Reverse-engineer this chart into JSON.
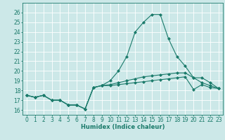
{
  "x": [
    0,
    1,
    2,
    3,
    4,
    5,
    6,
    7,
    8,
    9,
    10,
    11,
    12,
    13,
    14,
    15,
    16,
    17,
    18,
    19,
    20,
    21,
    22,
    23
  ],
  "line1": [
    17.5,
    17.3,
    17.5,
    17.0,
    17.0,
    16.5,
    16.5,
    16.1,
    18.3,
    18.5,
    18.5,
    18.6,
    18.7,
    18.8,
    18.9,
    19.0,
    19.1,
    19.2,
    19.3,
    19.4,
    18.1,
    18.6,
    18.3,
    18.2
  ],
  "line2": [
    17.5,
    17.3,
    17.5,
    17.0,
    17.0,
    16.5,
    16.5,
    16.1,
    18.3,
    18.5,
    18.6,
    18.8,
    19.0,
    19.2,
    19.4,
    19.5,
    19.6,
    19.7,
    19.8,
    19.8,
    19.3,
    18.8,
    18.5,
    18.2
  ],
  "line3": [
    17.5,
    17.3,
    17.5,
    17.0,
    17.0,
    16.5,
    16.5,
    16.1,
    18.3,
    18.5,
    19.0,
    20.0,
    21.5,
    24.0,
    25.0,
    25.8,
    25.8,
    23.3,
    21.5,
    20.5,
    19.3,
    19.3,
    18.8,
    18.2
  ],
  "line_color": "#1a7a6a",
  "bg_color": "#cce8e8",
  "grid_color": "#ffffff",
  "xlabel": "Humidex (Indice chaleur)",
  "ylim": [
    15.5,
    27
  ],
  "xlim": [
    -0.5,
    23.5
  ],
  "yticks": [
    16,
    17,
    18,
    19,
    20,
    21,
    22,
    23,
    24,
    25,
    26
  ],
  "xticks": [
    0,
    1,
    2,
    3,
    4,
    5,
    6,
    7,
    8,
    9,
    10,
    11,
    12,
    13,
    14,
    15,
    16,
    17,
    18,
    19,
    20,
    21,
    22,
    23
  ],
  "fontsize": 5.5,
  "marker": "D",
  "markersize": 2.0,
  "linewidth": 0.8
}
